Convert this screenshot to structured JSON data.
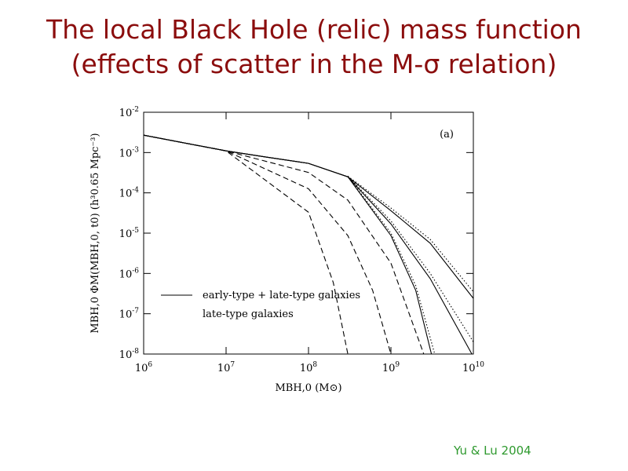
{
  "slide": {
    "title": [
      "The local Black Hole (relic) mass function",
      "(effects of scatter in the M-σ relation)"
    ],
    "credit": "Yu & Lu 2004"
  },
  "chart_data": {
    "type": "line",
    "log_x": true,
    "log_y": true,
    "xlabel": "MBH,0 (M⊙)",
    "ylabel": "MBH,0 ΦM(MBH,0, t0) (h³0.65 Mpc⁻³)",
    "annotation": "(a)",
    "xlim": [
      1000000,
      10000000000
    ],
    "xticks": [
      {
        "value": 1000000,
        "label": "10^6"
      },
      {
        "value": 10000000,
        "label": "10^7"
      },
      {
        "value": 100000000,
        "label": "10^8"
      },
      {
        "value": 1000000000,
        "label": "10^9"
      },
      {
        "value": 10000000000,
        "label": "10^10"
      }
    ],
    "ylim": [
      1e-08,
      0.01
    ],
    "yticks": [
      {
        "value": 1e-08,
        "label": "10^-8"
      },
      {
        "value": 1e-07,
        "label": "10^-7"
      },
      {
        "value": 1e-06,
        "label": "10^-6"
      },
      {
        "value": 1e-05,
        "label": "10^-5"
      },
      {
        "value": 0.0001,
        "label": "10^-4"
      },
      {
        "value": 0.001,
        "label": "10^-3"
      },
      {
        "value": 0.01,
        "label": "10^-2"
      }
    ],
    "legend": "lower left",
    "series": [
      {
        "name": "early-type + late-type galaxies",
        "color": "#000000",
        "style": "solid",
        "x": [
          1000000,
          10000000,
          30000000,
          100000000,
          300000000,
          1000000000,
          3000000000,
          10000000000
        ],
        "values": [
          0.0027,
          0.0011,
          0.00078,
          0.00054,
          0.00025,
          3.6e-05,
          5.6e-06,
          2.4e-07
        ]
      },
      {
        "color": "#000000",
        "style": "solid",
        "x": [
          1000000,
          10000000,
          30000000,
          100000000,
          300000000,
          1000000000,
          3000000000,
          9600000000
        ],
        "values": [
          0.0027,
          0.0011,
          0.00078,
          0.00054,
          0.00025,
          1.7e-05,
          7.4e-07,
          1e-08
        ]
      },
      {
        "color": "#000000",
        "style": "solid",
        "x": [
          1000000,
          10000000,
          30000000,
          100000000,
          300000000,
          1000000000,
          2000000000,
          3100000000
        ],
        "values": [
          0.0027,
          0.0011,
          0.00078,
          0.00054,
          0.00025,
          8.7e-06,
          3.8e-07,
          1e-08
        ]
      },
      {
        "color": "#000000",
        "style": "dotted",
        "x": [
          300000000,
          1000000000,
          3000000000,
          10000000000
        ],
        "values": [
          0.00026,
          4.2e-05,
          7e-06,
          3.5e-07
        ]
      },
      {
        "color": "#000000",
        "style": "dotted",
        "x": [
          300000000,
          1000000000,
          3000000000,
          10000000000
        ],
        "values": [
          0.00026,
          2e-05,
          1e-06,
          2e-08
        ]
      },
      {
        "color": "#000000",
        "style": "dotted",
        "x": [
          300000000,
          1000000000,
          2000000000,
          3400000000
        ],
        "values": [
          0.00026,
          1e-05,
          5e-07,
          1e-08
        ]
      },
      {
        "name": "late-type galaxies",
        "color": "#000000",
        "style": "dashed",
        "x": [
          1000000,
          10000000,
          100000000,
          300000000,
          1000000000,
          2500000000
        ],
        "values": [
          0.0027,
          0.0011,
          0.00032,
          6.6e-05,
          1.8e-06,
          1e-08
        ]
      },
      {
        "color": "#000000",
        "style": "dashed",
        "x": [
          1000000,
          10000000,
          100000000,
          300000000,
          600000000,
          1000000000
        ],
        "values": [
          0.0027,
          0.0011,
          0.000126,
          8.7e-06,
          3.8e-07,
          1e-08
        ]
      },
      {
        "color": "#000000",
        "style": "dashed",
        "x": [
          1000000,
          10000000,
          100000000,
          200000000,
          300000000
        ],
        "values": [
          0.0027,
          0.0011,
          3.3e-05,
          5.9e-07,
          1e-08
        ]
      }
    ]
  }
}
